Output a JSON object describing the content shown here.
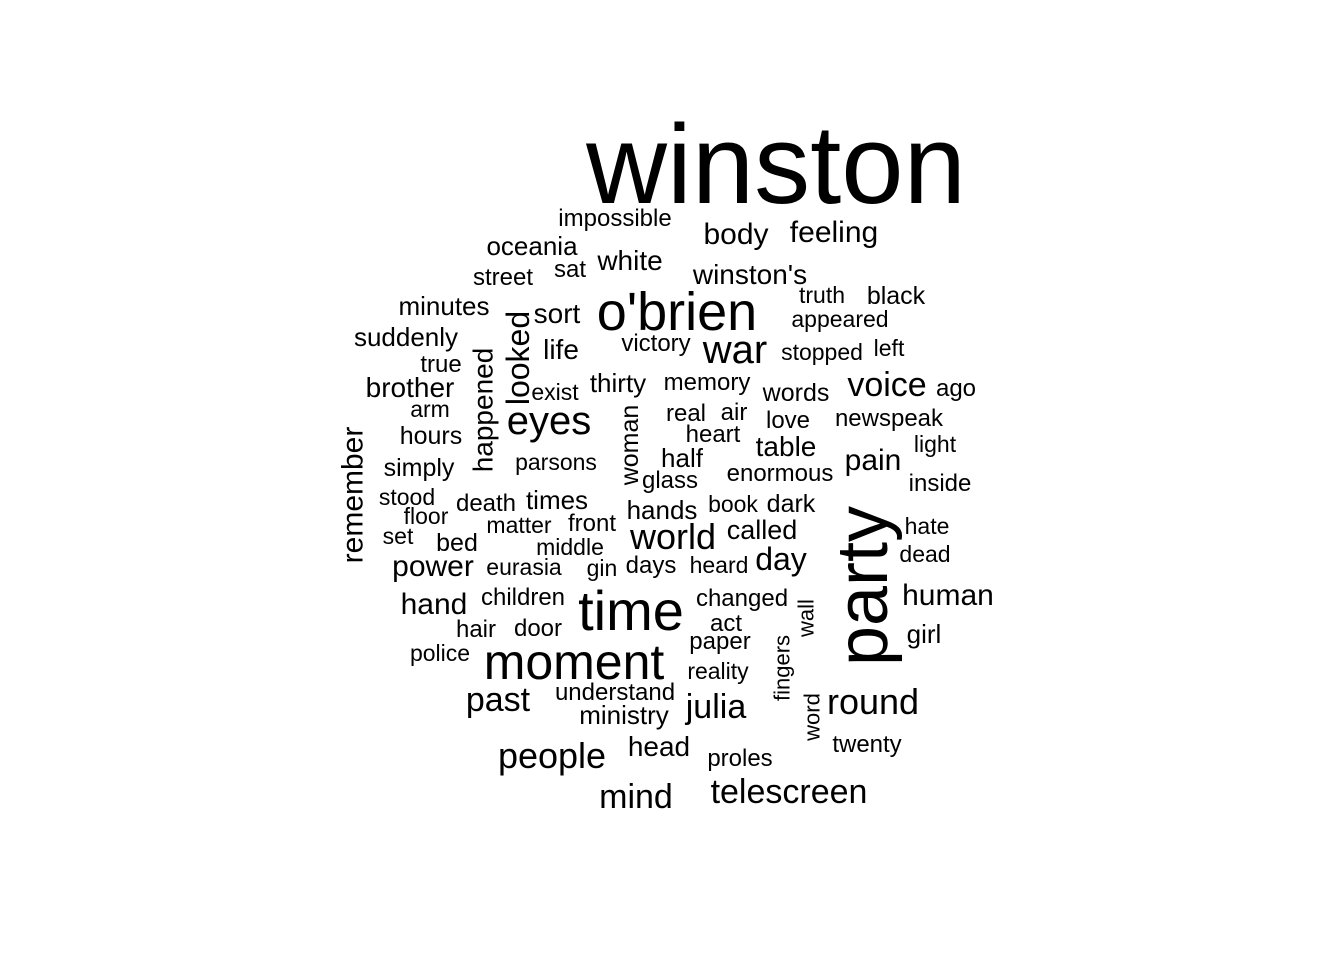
{
  "chart_data": {
    "type": "wordcloud",
    "text_color": "#000000",
    "background": "#ffffff",
    "words": [
      {
        "text": "winston",
        "weight": 100,
        "vertical": false
      },
      {
        "text": "party",
        "weight": 60,
        "vertical": true
      },
      {
        "text": "o'brien",
        "weight": 36,
        "vertical": false
      },
      {
        "text": "time",
        "weight": 38,
        "vertical": false
      },
      {
        "text": "moment",
        "weight": 33,
        "vertical": false
      },
      {
        "text": "war",
        "weight": 26,
        "vertical": false
      },
      {
        "text": "eyes",
        "weight": 26,
        "vertical": false
      },
      {
        "text": "world",
        "weight": 23,
        "vertical": false
      },
      {
        "text": "round",
        "weight": 23,
        "vertical": false
      },
      {
        "text": "people",
        "weight": 23,
        "vertical": false
      },
      {
        "text": "voice",
        "weight": 21,
        "vertical": false
      },
      {
        "text": "looked",
        "weight": 20,
        "vertical": true
      },
      {
        "text": "past",
        "weight": 21,
        "vertical": false
      },
      {
        "text": "julia",
        "weight": 21,
        "vertical": false
      },
      {
        "text": "telescreen",
        "weight": 21,
        "vertical": false
      },
      {
        "text": "mind",
        "weight": 21,
        "vertical": false
      },
      {
        "text": "day",
        "weight": 20,
        "vertical": false
      },
      {
        "text": "body",
        "weight": 19,
        "vertical": false
      },
      {
        "text": "feeling",
        "weight": 19,
        "vertical": false
      },
      {
        "text": "remember",
        "weight": 18,
        "vertical": true
      },
      {
        "text": "happened",
        "weight": 17,
        "vertical": true
      },
      {
        "text": "human",
        "weight": 18,
        "vertical": false
      },
      {
        "text": "pain",
        "weight": 18,
        "vertical": false
      },
      {
        "text": "power",
        "weight": 18,
        "vertical": false
      },
      {
        "text": "hand",
        "weight": 18,
        "vertical": false
      },
      {
        "text": "winston's",
        "weight": 17,
        "vertical": false
      },
      {
        "text": "white",
        "weight": 17,
        "vertical": false
      },
      {
        "text": "life",
        "weight": 17,
        "vertical": false
      },
      {
        "text": "sort",
        "weight": 17,
        "vertical": false
      },
      {
        "text": "brother",
        "weight": 17,
        "vertical": false
      },
      {
        "text": "head",
        "weight": 17,
        "vertical": false
      },
      {
        "text": "table",
        "weight": 17,
        "vertical": false
      },
      {
        "text": "called",
        "weight": 16,
        "vertical": false
      },
      {
        "text": "woman",
        "weight": 15,
        "vertical": true
      },
      {
        "text": "minutes",
        "weight": 16,
        "vertical": false
      },
      {
        "text": "suddenly",
        "weight": 16,
        "vertical": false
      },
      {
        "text": "oceania",
        "weight": 16,
        "vertical": false
      },
      {
        "text": "thirty",
        "weight": 16,
        "vertical": false
      },
      {
        "text": "half",
        "weight": 16,
        "vertical": false
      },
      {
        "text": "times",
        "weight": 16,
        "vertical": false
      },
      {
        "text": "hands",
        "weight": 16,
        "vertical": false
      },
      {
        "text": "girl",
        "weight": 16,
        "vertical": false
      },
      {
        "text": "ministry",
        "weight": 16,
        "vertical": false
      },
      {
        "text": "dark",
        "weight": 15,
        "vertical": false
      },
      {
        "text": "words",
        "weight": 15,
        "vertical": false
      },
      {
        "text": "black",
        "weight": 15,
        "vertical": false
      },
      {
        "text": "bed",
        "weight": 15,
        "vertical": false
      },
      {
        "text": "hours",
        "weight": 15,
        "vertical": false
      },
      {
        "text": "simply",
        "weight": 15,
        "vertical": false
      },
      {
        "text": "memory",
        "weight": 15,
        "vertical": false
      },
      {
        "text": "victory",
        "weight": 15,
        "vertical": false
      },
      {
        "text": "impossible",
        "weight": 15,
        "vertical": false
      },
      {
        "text": "street",
        "weight": 15,
        "vertical": false
      },
      {
        "text": "sat",
        "weight": 15,
        "vertical": false
      },
      {
        "text": "true",
        "weight": 15,
        "vertical": false
      },
      {
        "text": "heart",
        "weight": 15,
        "vertical": false
      },
      {
        "text": "real",
        "weight": 15,
        "vertical": false
      },
      {
        "text": "air",
        "weight": 15,
        "vertical": false
      },
      {
        "text": "love",
        "weight": 15,
        "vertical": false
      },
      {
        "text": "newspeak",
        "weight": 15,
        "vertical": false
      },
      {
        "text": "enormous",
        "weight": 15,
        "vertical": false
      },
      {
        "text": "glass",
        "weight": 15,
        "vertical": false
      },
      {
        "text": "inside",
        "weight": 15,
        "vertical": false
      },
      {
        "text": "ago",
        "weight": 15,
        "vertical": false
      },
      {
        "text": "death",
        "weight": 15,
        "vertical": false
      },
      {
        "text": "front",
        "weight": 15,
        "vertical": false
      },
      {
        "text": "days",
        "weight": 15,
        "vertical": false
      },
      {
        "text": "children",
        "weight": 15,
        "vertical": false
      },
      {
        "text": "hair",
        "weight": 15,
        "vertical": false
      },
      {
        "text": "door",
        "weight": 15,
        "vertical": false
      },
      {
        "text": "changed",
        "weight": 15,
        "vertical": false
      },
      {
        "text": "act",
        "weight": 15,
        "vertical": false
      },
      {
        "text": "paper",
        "weight": 15,
        "vertical": false
      },
      {
        "text": "understand",
        "weight": 15,
        "vertical": false
      },
      {
        "text": "twenty",
        "weight": 15,
        "vertical": false
      },
      {
        "text": "proles",
        "weight": 15,
        "vertical": false
      },
      {
        "text": "middle",
        "weight": 14,
        "vertical": false
      },
      {
        "text": "matter",
        "weight": 14,
        "vertical": false
      },
      {
        "text": "heard",
        "weight": 14,
        "vertical": false
      },
      {
        "text": "book",
        "weight": 14,
        "vertical": false
      },
      {
        "text": "hate",
        "weight": 14,
        "vertical": false
      },
      {
        "text": "dead",
        "weight": 14,
        "vertical": false
      },
      {
        "text": "light",
        "weight": 14,
        "vertical": false
      },
      {
        "text": "stopped",
        "weight": 14,
        "vertical": false
      },
      {
        "text": "appeared",
        "weight": 14,
        "vertical": false
      },
      {
        "text": "truth",
        "weight": 14,
        "vertical": false
      },
      {
        "text": "left",
        "weight": 14,
        "vertical": false
      },
      {
        "text": "parsons",
        "weight": 14,
        "vertical": false
      },
      {
        "text": "exist",
        "weight": 14,
        "vertical": false
      },
      {
        "text": "arm",
        "weight": 14,
        "vertical": false
      },
      {
        "text": "stood",
        "weight": 14,
        "vertical": false
      },
      {
        "text": "floor",
        "weight": 14,
        "vertical": false
      },
      {
        "text": "set",
        "weight": 14,
        "vertical": false
      },
      {
        "text": "eurasia",
        "weight": 14,
        "vertical": false
      },
      {
        "text": "gin",
        "weight": 14,
        "vertical": false
      },
      {
        "text": "police",
        "weight": 14,
        "vertical": false
      },
      {
        "text": "reality",
        "weight": 14,
        "vertical": false
      },
      {
        "text": "fingers",
        "weight": 14,
        "vertical": true
      },
      {
        "text": "wall",
        "weight": 14,
        "vertical": true
      },
      {
        "text": "word",
        "weight": 14,
        "vertical": true
      }
    ]
  }
}
